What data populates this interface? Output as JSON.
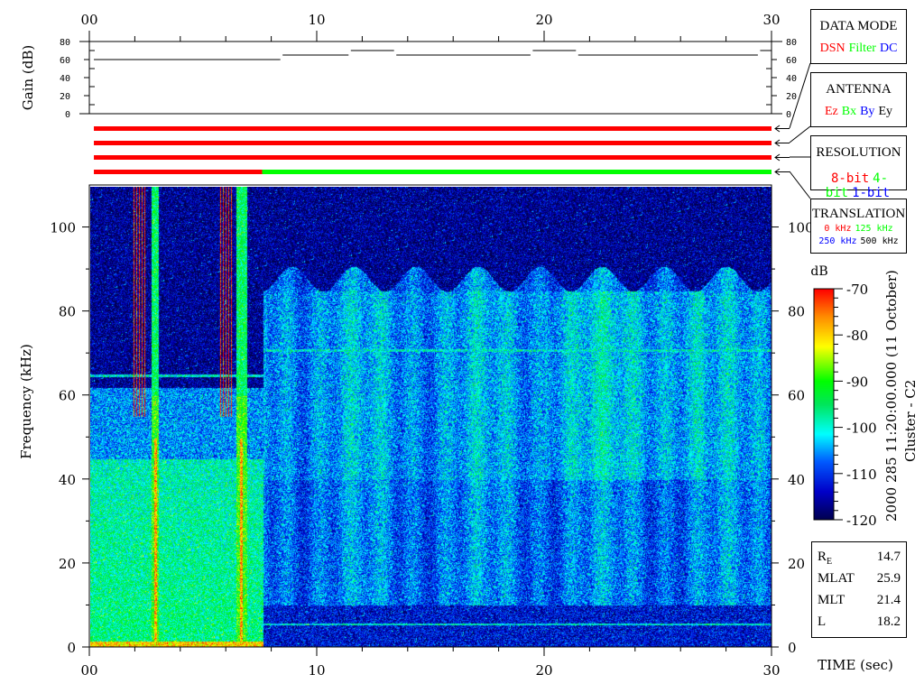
{
  "chart_data": {
    "type": "heatmap",
    "title": "",
    "xlabel": "TIME (sec)",
    "ylabel": "Frequency (kHz)",
    "xlim": [
      0,
      30
    ],
    "ylim": [
      0,
      110
    ],
    "x_ticks": [
      "00",
      "10",
      "20",
      "30"
    ],
    "y_ticks": [
      "0",
      "20",
      "40",
      "60",
      "80",
      "100"
    ],
    "colorbar": {
      "label": "dB",
      "range": [
        -120,
        -70
      ],
      "ticks": [
        "-70",
        "-80",
        "-90",
        "-100",
        "-110",
        "-120"
      ],
      "colormap": "jet"
    },
    "features": {
      "mode_change_time": 7.6,
      "horizontal_lines_khz_before": [
        65
      ],
      "horizontal_lines_khz_after": [
        71,
        5.5
      ],
      "vertical_bursts_sec": [
        [
          1.8,
          2.4
        ],
        [
          2.7,
          3.0
        ],
        [
          5.7,
          6.2
        ],
        [
          6.4,
          6.9
        ]
      ]
    },
    "gain": {
      "ylabel": "Gain (dB)",
      "ylim": [
        0,
        80
      ],
      "y_ticks": [
        "80",
        "60",
        "40",
        "20",
        "0"
      ],
      "segments": [
        {
          "t0": 0.2,
          "t1": 8.4,
          "gain": 60
        },
        {
          "t0": 8.5,
          "t1": 11.4,
          "gain": 65
        },
        {
          "t0": 11.5,
          "t1": 13.4,
          "gain": 70
        },
        {
          "t0": 13.5,
          "t1": 19.4,
          "gain": 65
        },
        {
          "t0": 19.5,
          "t1": 21.4,
          "gain": 70
        },
        {
          "t0": 21.5,
          "t1": 29.4,
          "gain": 65
        },
        {
          "t0": 29.5,
          "t1": 30,
          "gain": 70
        }
      ]
    },
    "status_bars": [
      {
        "name": "DATA MODE",
        "segments": [
          {
            "t0": 0.2,
            "t1": 30,
            "color": "#ff0000"
          }
        ]
      },
      {
        "name": "ANTENNA",
        "segments": [
          {
            "t0": 0.2,
            "t1": 30,
            "color": "#ff0000"
          }
        ]
      },
      {
        "name": "RESOLUTION",
        "segments": [
          {
            "t0": 0.2,
            "t1": 30,
            "color": "#ff0000"
          }
        ]
      },
      {
        "name": "TRANSLATION",
        "segments": [
          {
            "t0": 0.2,
            "t1": 7.6,
            "color": "#ff0000"
          },
          {
            "t0": 7.6,
            "t1": 30,
            "color": "#00ff00"
          }
        ]
      }
    ]
  },
  "legend": {
    "data_mode": {
      "title": "DATA MODE",
      "items": [
        {
          "label": "DSN",
          "color": "#ff0000"
        },
        {
          "label": "Filter",
          "color": "#00ff00"
        },
        {
          "label": "DC",
          "color": "#0000ff"
        }
      ]
    },
    "antenna": {
      "title": "ANTENNA",
      "items": [
        {
          "label": "Ez",
          "color": "#ff0000"
        },
        {
          "label": "Bx",
          "color": "#00ff00"
        },
        {
          "label": "By",
          "color": "#0000ff"
        },
        {
          "label": "Ey",
          "color": "#000000"
        }
      ]
    },
    "resolution": {
      "title": "RESOLUTION",
      "items": [
        {
          "label": "8-bit",
          "color": "#ff0000"
        },
        {
          "label": "4-bit",
          "color": "#00ff00"
        },
        {
          "label": "1-bit",
          "color": "#0000ff"
        }
      ]
    },
    "translation": {
      "title": "TRANSLATION",
      "items": [
        {
          "label": "0 kHz",
          "color": "#ff0000"
        },
        {
          "label": "125 kHz",
          "color": "#00ff00"
        },
        {
          "label": "250 kHz",
          "color": "#0000ff"
        },
        {
          "label": "500 kHz",
          "color": "#000000"
        }
      ]
    }
  },
  "side_label": {
    "timestamp": "2000 285 11:20:00.000 (11 October)",
    "spacecraft": "Cluster - C2"
  },
  "orbit": [
    {
      "label": "R",
      "sub": "E",
      "value": "14.7"
    },
    {
      "label": "MLAT",
      "sub": "",
      "value": "25.9"
    },
    {
      "label": "MLT",
      "sub": "",
      "value": "21.4"
    },
    {
      "label": "L",
      "sub": "",
      "value": "18.2"
    }
  ]
}
